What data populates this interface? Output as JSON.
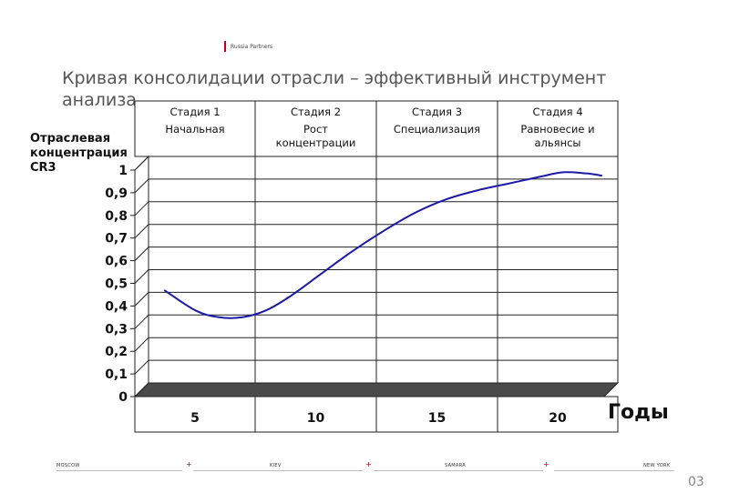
{
  "brand": "Russia Partners",
  "title": "Кривая консолидации отрасли – эффективный инструмент анализа",
  "chart_data": {
    "type": "line",
    "ylabel_lines": [
      "Отраслевая",
      "концентрация",
      "CR3"
    ],
    "xlabel": "Годы",
    "y_ticks": [
      "1",
      "0,9",
      "0,8",
      "0,7",
      "0,6",
      "0,5",
      "0,4",
      "0,3",
      "0,2",
      "0,1",
      "0"
    ],
    "x_ticks": [
      "5",
      "10",
      "15",
      "20"
    ],
    "ylim": [
      0,
      1
    ],
    "stages": [
      {
        "num": "Стадия 1",
        "lines": [
          "Начальная"
        ]
      },
      {
        "num": "Стадия 2",
        "lines": [
          "Рост",
          "концентрации"
        ]
      },
      {
        "num": "Стадия 3",
        "lines": [
          "Специализация"
        ]
      },
      {
        "num": "Стадия 4",
        "lines": [
          "Равновесие и",
          "альянсы"
        ]
      }
    ],
    "series": [
      {
        "color": "#1a1aa6",
        "points": [
          [
            1,
            0.41
          ],
          [
            3,
            0.32
          ],
          [
            4.5,
            0.29
          ],
          [
            6,
            0.29
          ],
          [
            7.5,
            0.32
          ],
          [
            9,
            0.38
          ],
          [
            11,
            0.48
          ],
          [
            13,
            0.58
          ],
          [
            15,
            0.67
          ],
          [
            17,
            0.75
          ],
          [
            19,
            0.81
          ],
          [
            21,
            0.85
          ],
          [
            23,
            0.88
          ],
          [
            25,
            0.91
          ],
          [
            26.5,
            0.93
          ],
          [
            28,
            0.925
          ],
          [
            29,
            0.915
          ]
        ]
      }
    ],
    "grid": true
  },
  "footer": {
    "cities": [
      "MOSCOW",
      "KIEV",
      "SAMARA",
      "NEW YORK"
    ],
    "plus": "+"
  },
  "page_number": "03"
}
